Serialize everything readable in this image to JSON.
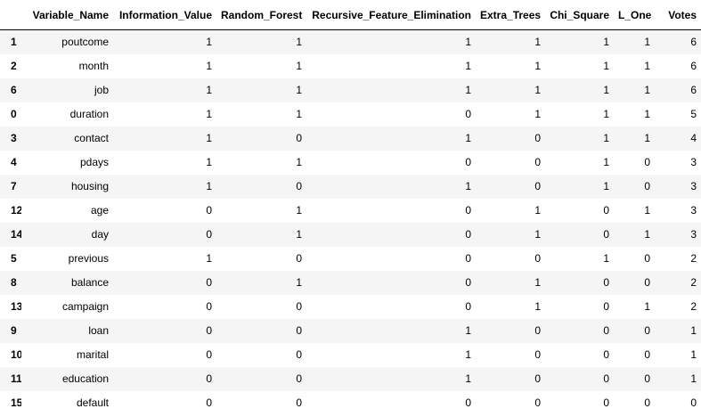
{
  "table": {
    "index_header": "",
    "columns": [
      "Variable_Name",
      "Information_Value",
      "Random_Forest",
      "Recursive_Feature_Elimination",
      "Extra_Trees",
      "Chi_Square",
      "L_One",
      "Votes"
    ],
    "rows": [
      {
        "index": "1",
        "cells": [
          "poutcome",
          "1",
          "1",
          "1",
          "1",
          "1",
          "1",
          "6"
        ]
      },
      {
        "index": "2",
        "cells": [
          "month",
          "1",
          "1",
          "1",
          "1",
          "1",
          "1",
          "6"
        ]
      },
      {
        "index": "6",
        "cells": [
          "job",
          "1",
          "1",
          "1",
          "1",
          "1",
          "1",
          "6"
        ]
      },
      {
        "index": "0",
        "cells": [
          "duration",
          "1",
          "1",
          "0",
          "1",
          "1",
          "1",
          "5"
        ]
      },
      {
        "index": "3",
        "cells": [
          "contact",
          "1",
          "0",
          "1",
          "0",
          "1",
          "1",
          "4"
        ]
      },
      {
        "index": "4",
        "cells": [
          "pdays",
          "1",
          "1",
          "0",
          "0",
          "1",
          "0",
          "3"
        ]
      },
      {
        "index": "7",
        "cells": [
          "housing",
          "1",
          "0",
          "1",
          "0",
          "1",
          "0",
          "3"
        ]
      },
      {
        "index": "12",
        "cells": [
          "age",
          "0",
          "1",
          "0",
          "1",
          "0",
          "1",
          "3"
        ]
      },
      {
        "index": "14",
        "cells": [
          "day",
          "0",
          "1",
          "0",
          "1",
          "0",
          "1",
          "3"
        ]
      },
      {
        "index": "5",
        "cells": [
          "previous",
          "1",
          "0",
          "0",
          "0",
          "1",
          "0",
          "2"
        ]
      },
      {
        "index": "8",
        "cells": [
          "balance",
          "0",
          "1",
          "0",
          "1",
          "0",
          "0",
          "2"
        ]
      },
      {
        "index": "13",
        "cells": [
          "campaign",
          "0",
          "0",
          "0",
          "1",
          "0",
          "1",
          "2"
        ]
      },
      {
        "index": "9",
        "cells": [
          "loan",
          "0",
          "0",
          "1",
          "0",
          "0",
          "0",
          "1"
        ]
      },
      {
        "index": "10",
        "cells": [
          "marital",
          "0",
          "0",
          "1",
          "0",
          "0",
          "0",
          "1"
        ]
      },
      {
        "index": "11",
        "cells": [
          "education",
          "0",
          "0",
          "1",
          "0",
          "0",
          "0",
          "1"
        ]
      },
      {
        "index": "15",
        "cells": [
          "default",
          "0",
          "0",
          "0",
          "0",
          "0",
          "0",
          "0"
        ]
      }
    ]
  }
}
